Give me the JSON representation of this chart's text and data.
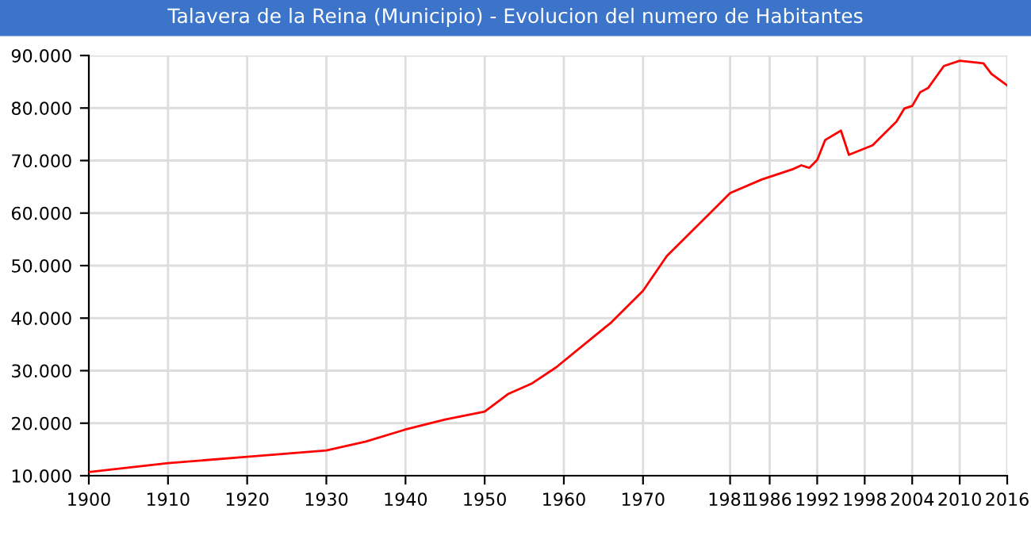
{
  "chart_data": {
    "type": "line",
    "title": "Talavera de la Reina (Municipio) - Evolucion del numero de Habitantes",
    "x": [
      1900,
      1910,
      1920,
      1930,
      1935,
      1940,
      1945,
      1950,
      1953,
      1956,
      1959,
      1966,
      1970,
      1973,
      1976,
      1981,
      1985,
      1989,
      1990,
      1991,
      1992,
      1993,
      1995,
      1996,
      1999,
      2000,
      2002,
      2003,
      2004,
      2005,
      2006,
      2008,
      2010,
      2013,
      2014,
      2016
    ],
    "series": [
      {
        "color": "#ff0000",
        "values": [
          10700,
          12400,
          13600,
          14800,
          16500,
          18800,
          20700,
          22200,
          25600,
          27600,
          30600,
          39200,
          45200,
          51800,
          56300,
          63800,
          66400,
          68400,
          69100,
          68600,
          70100,
          73900,
          75700,
          71100,
          72900,
          74400,
          77400,
          79900,
          80400,
          83000,
          83800,
          88000,
          89000,
          88500,
          86500,
          84300
        ]
      }
    ],
    "xlim": [
      1900,
      2016
    ],
    "xticks": [
      1900,
      1910,
      1920,
      1930,
      1940,
      1950,
      1960,
      1970,
      1981,
      1986,
      1992,
      1998,
      2004,
      2010,
      2016
    ],
    "ylim": [
      10000,
      90000
    ],
    "yticks": [
      {
        "value": 10000,
        "label": "10.000"
      },
      {
        "value": 20000,
        "label": "20.000"
      },
      {
        "value": 30000,
        "label": "30.000"
      },
      {
        "value": 40000,
        "label": "40.000"
      },
      {
        "value": 50000,
        "label": "50.000"
      },
      {
        "value": 60000,
        "label": "60.000"
      },
      {
        "value": 70000,
        "label": "70.000"
      },
      {
        "value": 80000,
        "label": "80.000"
      },
      {
        "value": 90000,
        "label": "90.000"
      }
    ],
    "grid": true,
    "marker": "none",
    "line_style": "solid"
  }
}
